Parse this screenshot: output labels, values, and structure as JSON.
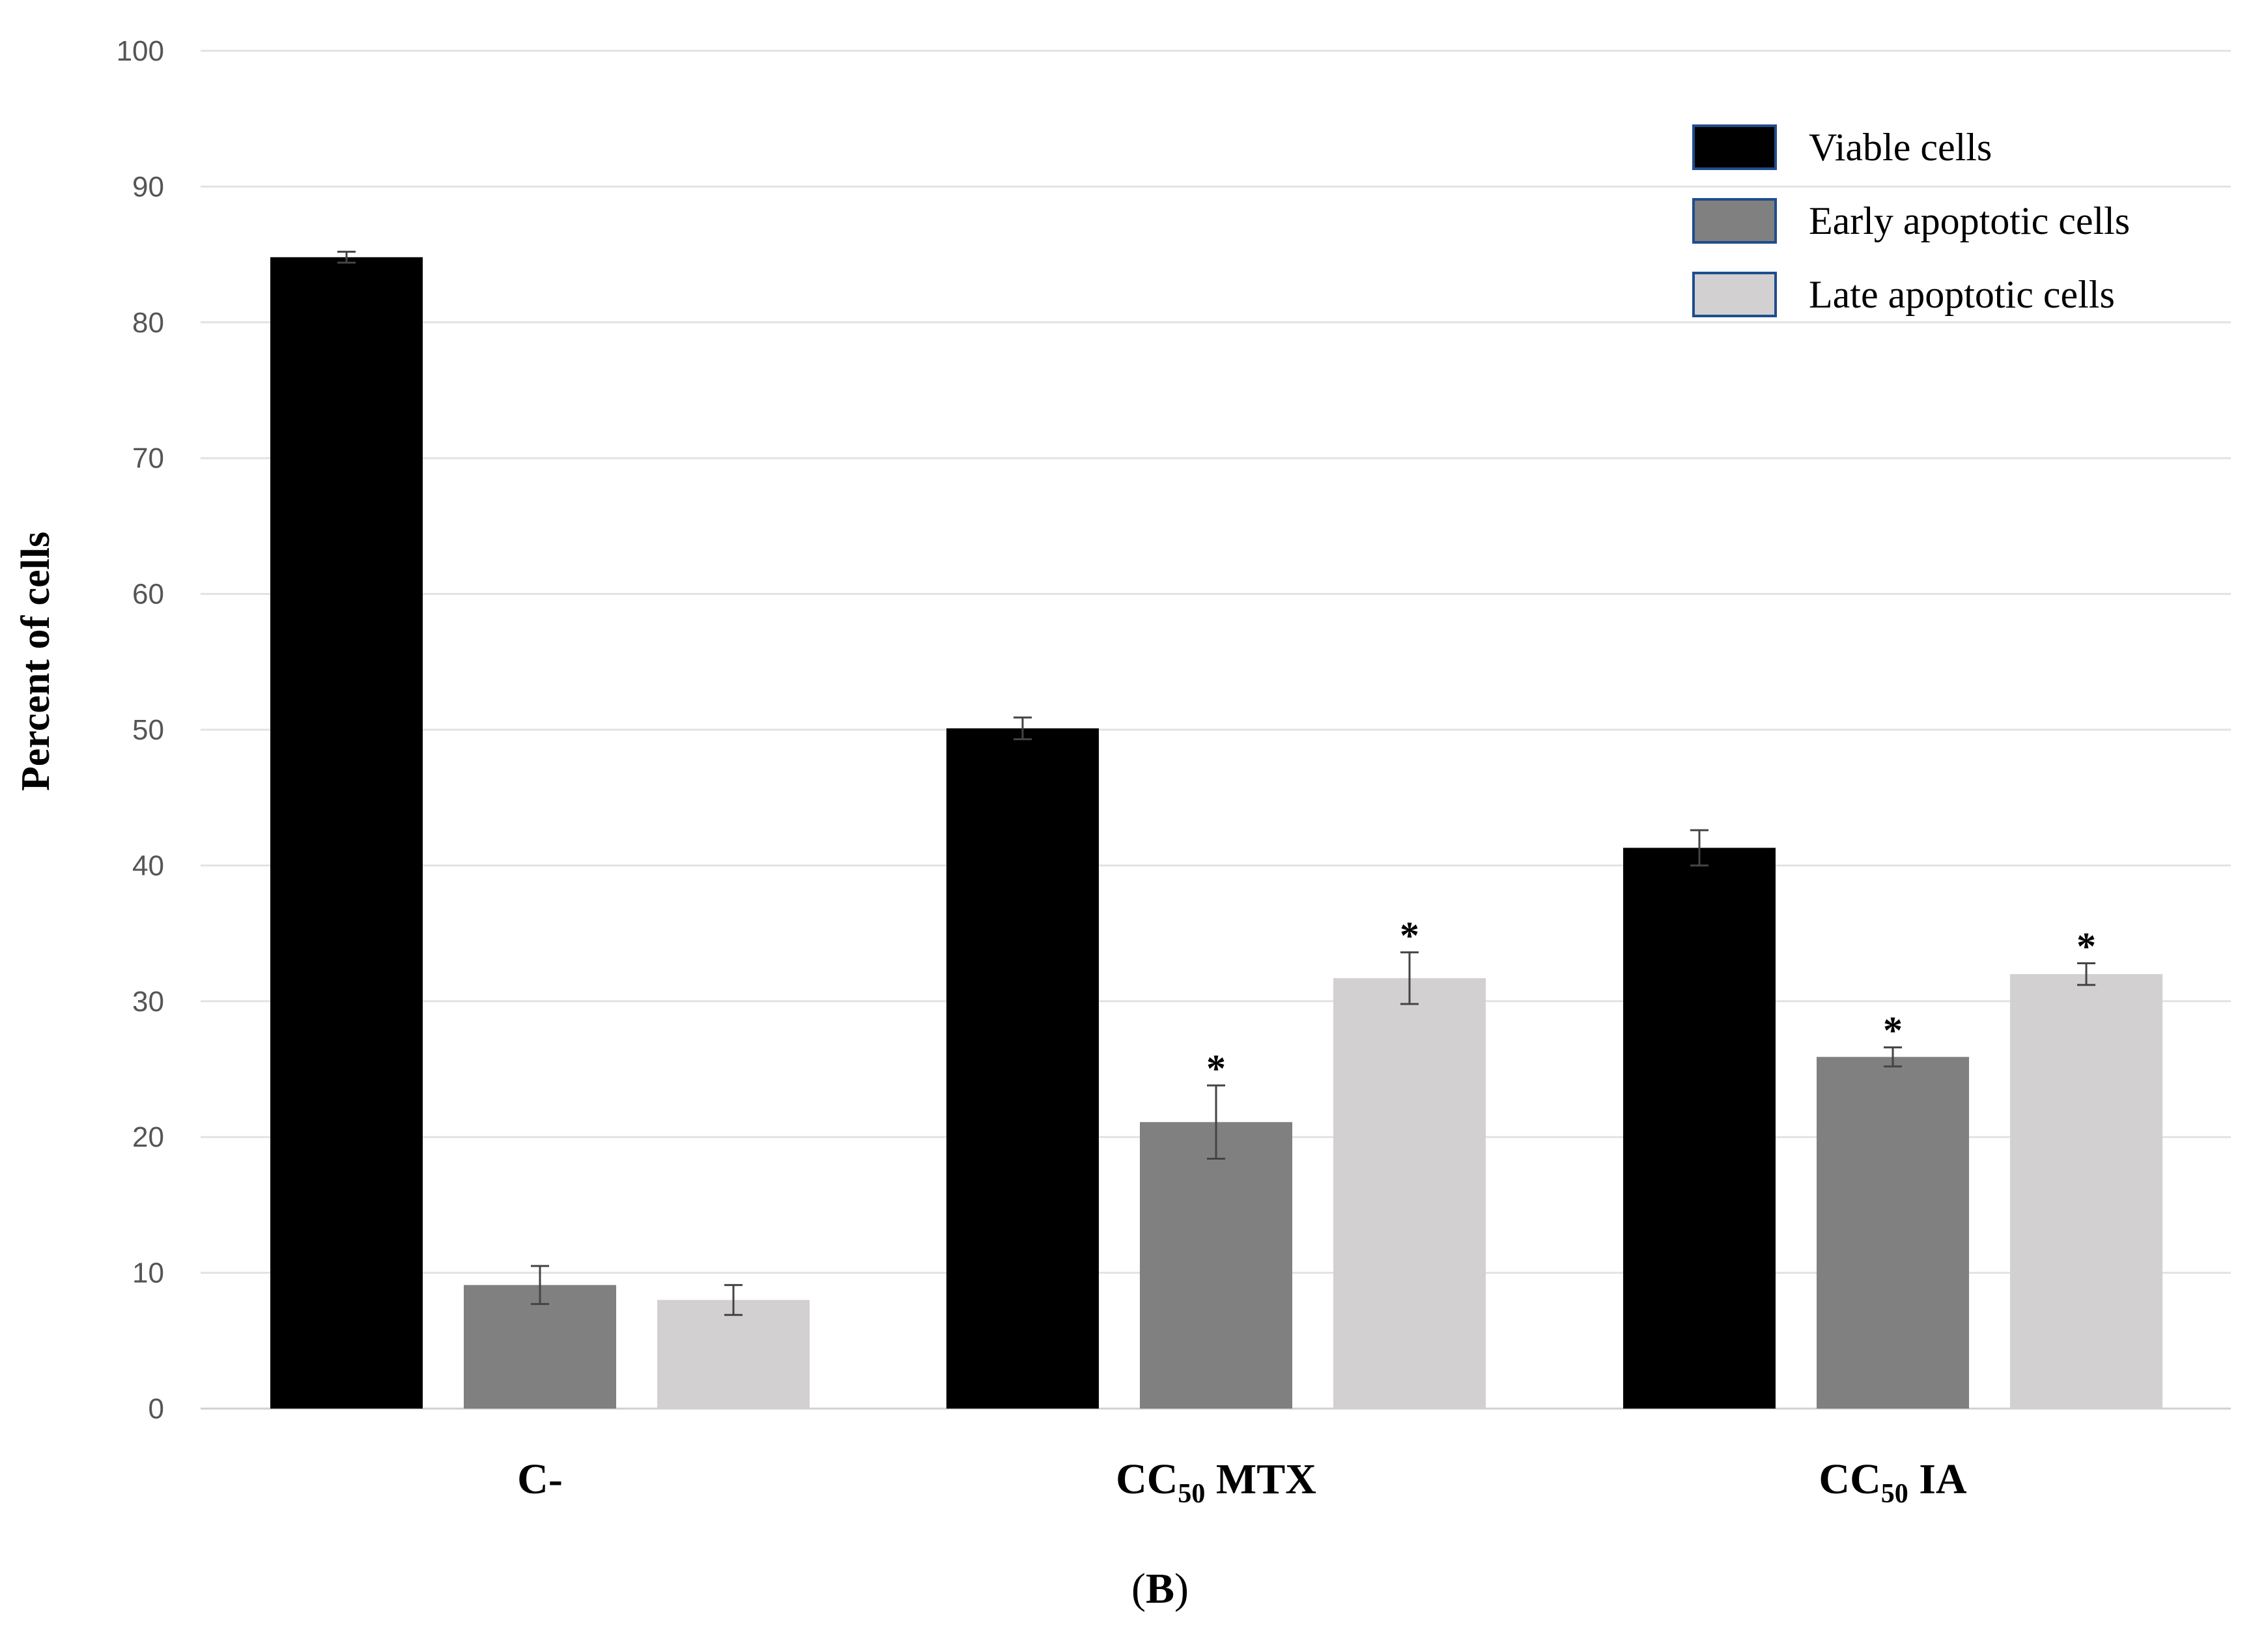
{
  "chart_data": {
    "type": "bar",
    "title": "",
    "xlabel": "",
    "ylabel": "Percent of cells",
    "ylim": [
      0,
      100
    ],
    "yticks": [
      0,
      10,
      20,
      30,
      40,
      50,
      60,
      70,
      80,
      90,
      100
    ],
    "grid": true,
    "legend_position": "top-right",
    "categories": [
      {
        "main": "C-",
        "sub": "",
        "suffix": ""
      },
      {
        "main": "CC",
        "sub": "50",
        "suffix": " MTX"
      },
      {
        "main": "CC",
        "sub": "50",
        "suffix": " IA"
      }
    ],
    "series": [
      {
        "name": "Viable cells",
        "color": "#000000",
        "values": [
          84.8,
          50.1,
          41.3
        ],
        "errors": [
          0.4,
          0.8,
          1.3
        ],
        "significant": [
          false,
          false,
          false
        ]
      },
      {
        "name": "Early apoptotic cells",
        "color": "#808080",
        "values": [
          9.1,
          21.1,
          25.9
        ],
        "errors": [
          1.4,
          2.7,
          0.7
        ],
        "significant": [
          false,
          true,
          true
        ]
      },
      {
        "name": "Late apoptotic cells",
        "color": "#d2d0d1",
        "values": [
          8.0,
          31.7,
          32.0
        ],
        "errors": [
          1.1,
          1.9,
          0.8
        ],
        "significant": [
          false,
          true,
          true
        ]
      }
    ],
    "significance_marker": "*",
    "panel_label": {
      "open": "(",
      "letter": "B",
      "close": ")"
    }
  }
}
